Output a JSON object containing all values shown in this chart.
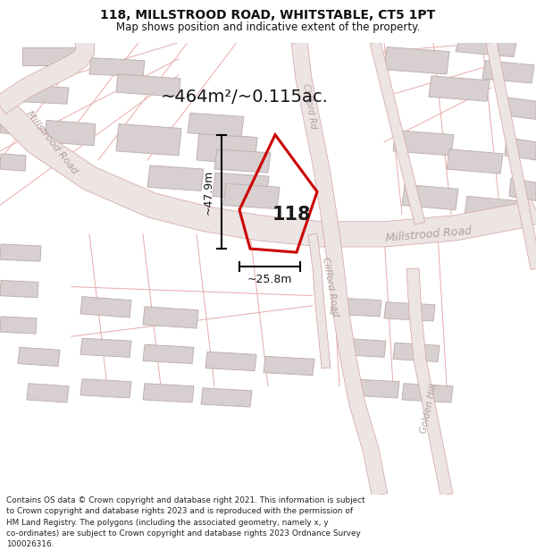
{
  "title_line1": "118, MILLSTROOD ROAD, WHITSTABLE, CT5 1PT",
  "title_line2": "Map shows position and indicative extent of the property.",
  "area_label": "~464m²/~0.115ac.",
  "width_label": "~25.8m",
  "height_label": "~47.9m",
  "number_label": "118",
  "footer_lines": [
    "Contains OS data © Crown copyright and database right 2021. This information is subject",
    "to Crown copyright and database rights 2023 and is reproduced with the permission of",
    "HM Land Registry. The polygons (including the associated geometry, namely x, y",
    "co-ordinates) are subject to Crown copyright and database rights 2023 Ordnance Survey",
    "100026316."
  ],
  "map_bg": "#f5eeee",
  "road_fill": "#ede4e4",
  "road_edge": "#d4a0a0",
  "building_fill": "#d8d0d0",
  "building_edge": "#c0b0b0",
  "plot_color": "#cc0000",
  "road_label_color": "#b0a0a0",
  "dim_color": "#111111",
  "title_color": "#111111",
  "footer_color": "#222222",
  "parcel_lines_color": "#e8aaaa"
}
